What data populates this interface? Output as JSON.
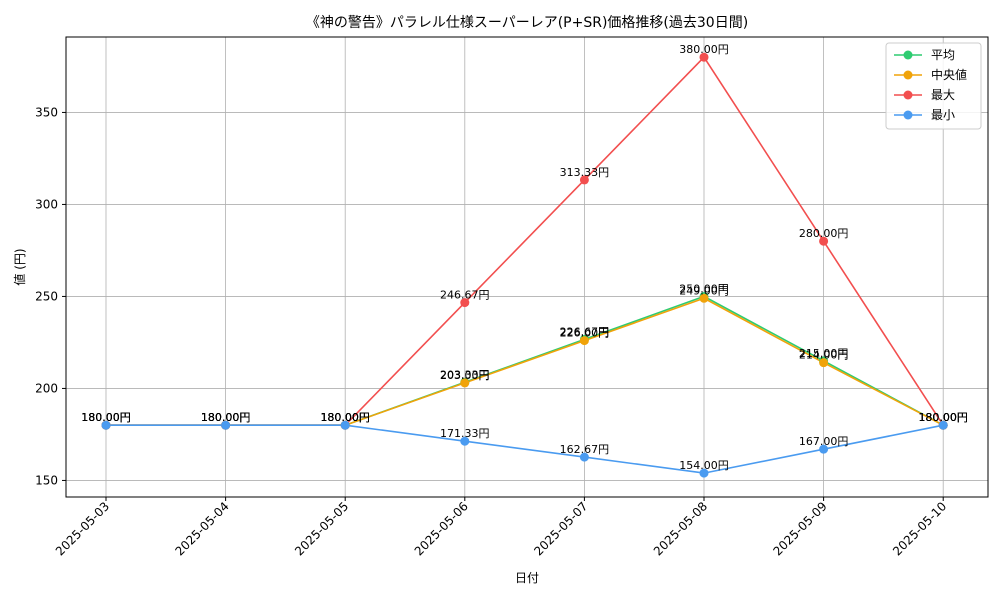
{
  "chart_data": {
    "type": "line",
    "title": "《神の警告》パラレル仕様スーパーレア(P+SR)価格推移(過去30日間)",
    "xlabel": "日付",
    "ylabel": "値 (円)",
    "categories": [
      "2025-05-03",
      "2025-05-04",
      "2025-05-05",
      "2025-05-06",
      "2025-05-07",
      "2025-05-08",
      "2025-05-09",
      "2025-05-10"
    ],
    "ylim": [
      141,
      391
    ],
    "yticks": [
      150,
      200,
      250,
      300,
      350
    ],
    "grid": true,
    "legend_position": "top-right",
    "value_suffix": "円",
    "series": [
      {
        "name": "平均",
        "color": "#2ecc71",
        "values": [
          180,
          180,
          180,
          203.33,
          226.67,
          250,
          215,
          180
        ]
      },
      {
        "name": "中央値",
        "color": "#f0a30a",
        "values": [
          180,
          180,
          180,
          203,
          226,
          249,
          214,
          180
        ]
      },
      {
        "name": "最大",
        "color": "#f24f4f",
        "values": [
          180,
          180,
          180,
          246.67,
          313.33,
          380,
          280,
          180
        ]
      },
      {
        "name": "最小",
        "color": "#4a9bf0",
        "values": [
          180,
          180,
          180,
          171.33,
          162.67,
          154,
          167,
          180
        ]
      }
    ]
  }
}
